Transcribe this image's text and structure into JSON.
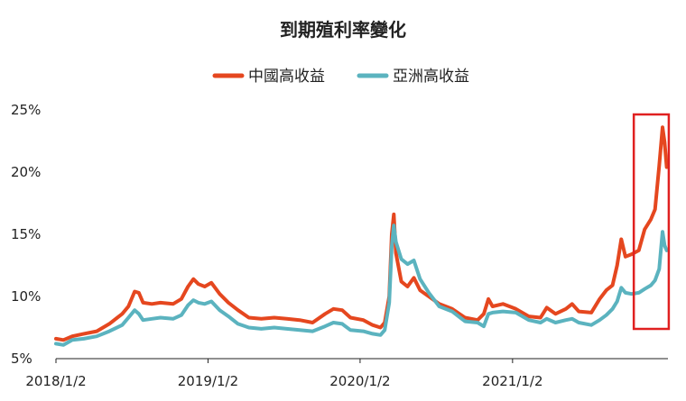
{
  "chart_data": {
    "type": "line",
    "title": "到期殖利率變化",
    "xlabel": "",
    "ylabel": "",
    "x_ticks": [
      "2018/1/2",
      "2019/1/2",
      "2020/1/2",
      "2021/1/2"
    ],
    "y_ticks": [
      "5%",
      "10%",
      "15%",
      "20%",
      "25%"
    ],
    "ylim": [
      5,
      25
    ],
    "legend": "top-center",
    "grid": false,
    "highlight_box": {
      "from": "2021/10/20",
      "to": "2022/1/12",
      "color": "#e02020"
    },
    "series": [
      {
        "name": "中國高收益",
        "color": "#e5471f",
        "points": [
          [
            "2018/1/2",
            6.6
          ],
          [
            "2018/1/20",
            6.5
          ],
          [
            "2018/2/10",
            6.8
          ],
          [
            "2018/3/10",
            7.0
          ],
          [
            "2018/4/10",
            7.2
          ],
          [
            "2018/5/10",
            7.8
          ],
          [
            "2018/6/10",
            8.6
          ],
          [
            "2018/6/25",
            9.2
          ],
          [
            "2018/7/10",
            10.4
          ],
          [
            "2018/7/20",
            10.3
          ],
          [
            "2018/7/30",
            9.5
          ],
          [
            "2018/8/20",
            9.4
          ],
          [
            "2018/9/10",
            9.5
          ],
          [
            "2018/10/10",
            9.4
          ],
          [
            "2018/10/30",
            9.8
          ],
          [
            "2018/11/15",
            10.8
          ],
          [
            "2018/11/28",
            11.4
          ],
          [
            "2018/12/10",
            11.0
          ],
          [
            "2018/12/25",
            10.8
          ],
          [
            "2019/1/10",
            11.1
          ],
          [
            "2019/1/30",
            10.2
          ],
          [
            "2019/2/20",
            9.5
          ],
          [
            "2019/3/15",
            8.9
          ],
          [
            "2019/4/10",
            8.3
          ],
          [
            "2019/5/10",
            8.2
          ],
          [
            "2019/6/10",
            8.3
          ],
          [
            "2019/7/10",
            8.2
          ],
          [
            "2019/8/10",
            8.1
          ],
          [
            "2019/9/10",
            7.9
          ],
          [
            "2019/10/10",
            8.6
          ],
          [
            "2019/10/30",
            9.0
          ],
          [
            "2019/11/20",
            8.9
          ],
          [
            "2019/12/10",
            8.3
          ],
          [
            "2020/1/10",
            8.1
          ],
          [
            "2020/2/1",
            7.7
          ],
          [
            "2020/2/20",
            7.5
          ],
          [
            "2020/3/1",
            7.9
          ],
          [
            "2020/3/12",
            10.0
          ],
          [
            "2020/3/18",
            15.0
          ],
          [
            "2020/3/23",
            16.6
          ],
          [
            "2020/3/28",
            13.5
          ],
          [
            "2020/4/10",
            11.2
          ],
          [
            "2020/4/25",
            10.8
          ],
          [
            "2020/5/10",
            11.5
          ],
          [
            "2020/5/25",
            10.5
          ],
          [
            "2020/6/15",
            10.0
          ],
          [
            "2020/7/10",
            9.4
          ],
          [
            "2020/8/10",
            9.0
          ],
          [
            "2020/9/10",
            8.3
          ],
          [
            "2020/10/10",
            8.1
          ],
          [
            "2020/10/25",
            8.6
          ],
          [
            "2020/11/5",
            9.8
          ],
          [
            "2020/11/15",
            9.2
          ],
          [
            "2020/12/10",
            9.4
          ],
          [
            "2021/1/10",
            9.0
          ],
          [
            "2021/2/10",
            8.4
          ],
          [
            "2021/3/10",
            8.3
          ],
          [
            "2021/3/25",
            9.1
          ],
          [
            "2021/4/15",
            8.6
          ],
          [
            "2021/5/10",
            9.0
          ],
          [
            "2021/5/25",
            9.4
          ],
          [
            "2021/6/10",
            8.8
          ],
          [
            "2021/7/10",
            8.7
          ],
          [
            "2021/7/30",
            9.8
          ],
          [
            "2021/8/15",
            10.5
          ],
          [
            "2021/8/30",
            10.9
          ],
          [
            "2021/9/10",
            12.5
          ],
          [
            "2021/9/20",
            14.6
          ],
          [
            "2021/9/30",
            13.2
          ],
          [
            "2021/10/15",
            13.4
          ],
          [
            "2021/11/1",
            13.7
          ],
          [
            "2021/11/15",
            15.4
          ],
          [
            "2021/11/30",
            16.2
          ],
          [
            "2021/12/10",
            17.0
          ],
          [
            "2021/12/20",
            20.5
          ],
          [
            "2021/12/28",
            23.6
          ],
          [
            "2022/1/2",
            22.4
          ],
          [
            "2022/1/7",
            20.4
          ]
        ]
      },
      {
        "name": "亞洲高收益",
        "color": "#5bb3bf",
        "points": [
          [
            "2018/1/2",
            6.2
          ],
          [
            "2018/1/20",
            6.1
          ],
          [
            "2018/2/10",
            6.5
          ],
          [
            "2018/3/10",
            6.6
          ],
          [
            "2018/4/10",
            6.8
          ],
          [
            "2018/5/10",
            7.2
          ],
          [
            "2018/6/10",
            7.7
          ],
          [
            "2018/6/25",
            8.3
          ],
          [
            "2018/7/10",
            8.9
          ],
          [
            "2018/7/20",
            8.6
          ],
          [
            "2018/7/30",
            8.1
          ],
          [
            "2018/8/20",
            8.2
          ],
          [
            "2018/9/10",
            8.3
          ],
          [
            "2018/10/10",
            8.2
          ],
          [
            "2018/10/30",
            8.5
          ],
          [
            "2018/11/15",
            9.3
          ],
          [
            "2018/11/28",
            9.7
          ],
          [
            "2018/12/10",
            9.5
          ],
          [
            "2018/12/25",
            9.4
          ],
          [
            "2019/1/10",
            9.6
          ],
          [
            "2019/1/30",
            8.9
          ],
          [
            "2019/2/20",
            8.4
          ],
          [
            "2019/3/15",
            7.8
          ],
          [
            "2019/4/10",
            7.5
          ],
          [
            "2019/5/10",
            7.4
          ],
          [
            "2019/6/10",
            7.5
          ],
          [
            "2019/7/10",
            7.4
          ],
          [
            "2019/8/10",
            7.3
          ],
          [
            "2019/9/10",
            7.2
          ],
          [
            "2019/10/10",
            7.6
          ],
          [
            "2019/10/30",
            7.9
          ],
          [
            "2019/11/20",
            7.8
          ],
          [
            "2019/12/10",
            7.3
          ],
          [
            "2020/1/10",
            7.2
          ],
          [
            "2020/2/1",
            7.0
          ],
          [
            "2020/2/20",
            6.9
          ],
          [
            "2020/3/1",
            7.3
          ],
          [
            "2020/3/12",
            9.5
          ],
          [
            "2020/3/18",
            14.0
          ],
          [
            "2020/3/23",
            15.7
          ],
          [
            "2020/3/28",
            14.4
          ],
          [
            "2020/4/10",
            13.0
          ],
          [
            "2020/4/25",
            12.6
          ],
          [
            "2020/5/10",
            12.9
          ],
          [
            "2020/5/25",
            11.4
          ],
          [
            "2020/6/15",
            10.3
          ],
          [
            "2020/7/10",
            9.2
          ],
          [
            "2020/8/10",
            8.8
          ],
          [
            "2020/9/10",
            8.0
          ],
          [
            "2020/10/10",
            7.9
          ],
          [
            "2020/10/25",
            7.6
          ],
          [
            "2020/11/5",
            8.6
          ],
          [
            "2020/11/15",
            8.7
          ],
          [
            "2020/12/10",
            8.8
          ],
          [
            "2021/1/10",
            8.7
          ],
          [
            "2021/2/10",
            8.1
          ],
          [
            "2021/3/10",
            7.9
          ],
          [
            "2021/3/25",
            8.2
          ],
          [
            "2021/4/15",
            7.9
          ],
          [
            "2021/5/10",
            8.1
          ],
          [
            "2021/5/25",
            8.2
          ],
          [
            "2021/6/10",
            7.9
          ],
          [
            "2021/7/10",
            7.7
          ],
          [
            "2021/7/30",
            8.1
          ],
          [
            "2021/8/15",
            8.5
          ],
          [
            "2021/8/30",
            9.0
          ],
          [
            "2021/9/10",
            9.6
          ],
          [
            "2021/9/20",
            10.7
          ],
          [
            "2021/9/30",
            10.3
          ],
          [
            "2021/10/15",
            10.2
          ],
          [
            "2021/11/1",
            10.3
          ],
          [
            "2021/11/15",
            10.6
          ],
          [
            "2021/11/30",
            10.9
          ],
          [
            "2021/12/10",
            11.3
          ],
          [
            "2021/12/20",
            12.2
          ],
          [
            "2021/12/28",
            15.2
          ],
          [
            "2022/1/2",
            14.1
          ],
          [
            "2022/1/7",
            13.7
          ]
        ]
      }
    ]
  }
}
